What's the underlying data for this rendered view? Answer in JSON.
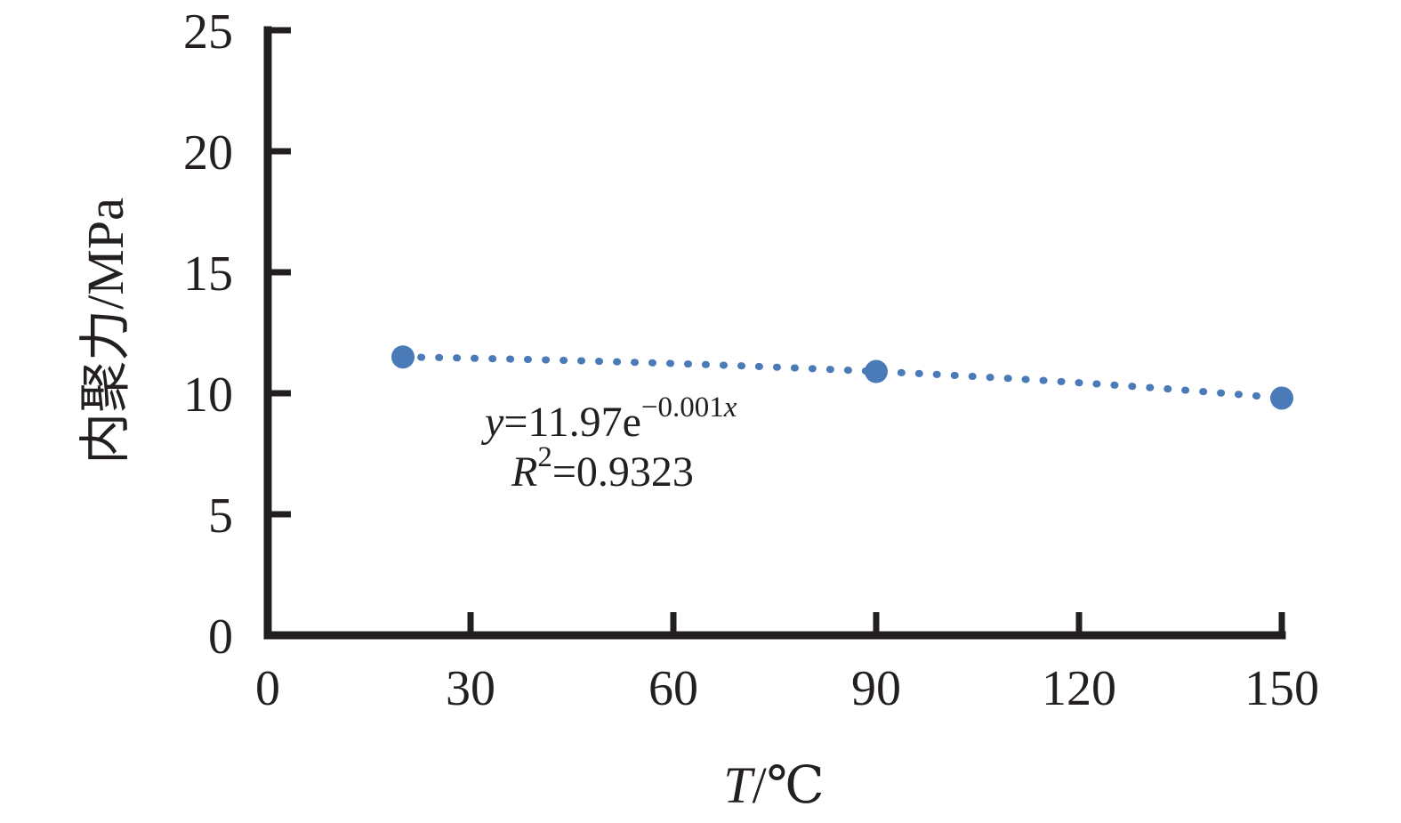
{
  "chart_data": {
    "type": "scatter",
    "title": "",
    "xlabel": {
      "var": "T",
      "rest": "/℃"
    },
    "ylabel": "内聚力/MPa",
    "xlim": [
      0,
      150
    ],
    "ylim": [
      0,
      25
    ],
    "x_ticks": [
      0,
      30,
      60,
      90,
      120,
      150
    ],
    "y_ticks": [
      0,
      5,
      10,
      15,
      20,
      25
    ],
    "grid": false,
    "legend": false,
    "axis_color": "#231f20",
    "series": [
      {
        "name": "cohesion-vs-temperature",
        "marker": "circle",
        "marker_color": "#4a7ab8",
        "points": [
          {
            "x": 20,
            "y": 11.5
          },
          {
            "x": 90,
            "y": 10.9
          },
          {
            "x": 150,
            "y": 9.8
          }
        ]
      }
    ],
    "trendline": {
      "style": "dotted",
      "color": "#4a7ab8",
      "fit": "exponential"
    },
    "annotation": {
      "y_var": "y",
      "eq_mid": "=11.97e",
      "exp_coef": "−0.001",
      "exp_var": "x",
      "r_var": "R",
      "r_sup": "2",
      "r_rest": "=0.9323"
    }
  }
}
